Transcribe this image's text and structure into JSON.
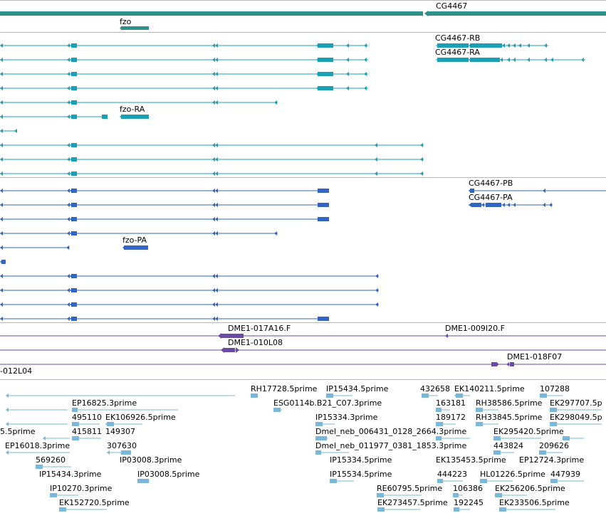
{
  "colors": {
    "gene": "#2f8f8a",
    "transcript_cyan": "#1aa0b5",
    "transcript_blue": "#3365c3",
    "clone": "#6a4aa3",
    "est": "#7ab8db",
    "divider": "#b8b8b8"
  },
  "icon_names": [
    "arrow-left-icon",
    "arrow-right-icon"
  ],
  "tracks": {
    "genes": {
      "labels": [
        "CG4467",
        "fzo"
      ]
    },
    "transcripts_a": {
      "labels": [
        "CG4467-RB",
        "CG4467-RA",
        "fzo-RA"
      ]
    },
    "transcripts_b": {
      "labels": [
        "CG4467-PB",
        "CG4467-PA",
        "fzo-PA"
      ]
    },
    "clones": {
      "labels": [
        "DME1-017A16.F",
        "DME1-009I20.F",
        "DME1-010L08",
        "DME1-018F07",
        "-012L04"
      ]
    },
    "ests": {
      "labels": [
        "RH17728.5prime",
        "IP15434.5prime",
        "432658",
        "EK140211.5prime",
        "107288",
        "EP16825.3prime",
        "ESG0114b.B21_C07.3prime",
        "163181",
        "RH38586.5prime",
        "EK297707.5p",
        "495110",
        "EK106926.5prime",
        "IP15334.3prime",
        "189172",
        "RH33845.5prime",
        "EK298049.5p",
        "5.5prime",
        "415811",
        "149307",
        "Dmel_neb_006431_0128_2664.3prime",
        "EK295420.5prime",
        "EP16018.3prime",
        "307630",
        "Dmel_neb_011977_0381_1853.3prime",
        "443824",
        "209626",
        "569260",
        "IP03008.3prime",
        "IP15334.5prime",
        "EK135453.5prime",
        "EP12724.3prime",
        "IP15434.3prime",
        "IP03008.5prime",
        "IP15534.5prime",
        "444223",
        "HL01226.5prime",
        "447939",
        "IP10270.3prime",
        "RE60795.5prime",
        "106386",
        "EK256206.5prime",
        "EK152720.5prime",
        "EK273457.5prime",
        "192245",
        "EK233506.5prime"
      ]
    }
  }
}
